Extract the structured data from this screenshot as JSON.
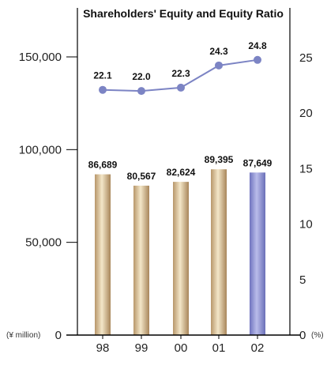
{
  "chart_data": {
    "type": "bar",
    "title": "Shareholders' Equity and Equity Ratio",
    "categories": [
      "98",
      "99",
      "00",
      "01",
      "02"
    ],
    "series": [
      {
        "type": "bar",
        "values": [
          86689,
          80567,
          82624,
          89395,
          87649
        ],
        "labels": [
          "86,689",
          "80,567",
          "82,624",
          "89,395",
          "87,649"
        ],
        "axis": "left",
        "colors": [
          "#c9b083",
          "#c9b083",
          "#c9b083",
          "#c9b083",
          "#8a8fd0"
        ]
      },
      {
        "type": "line",
        "values": [
          22.1,
          22.0,
          22.3,
          24.3,
          24.8
        ],
        "labels": [
          "22.1",
          "22.0",
          "22.3",
          "24.3",
          "24.8"
        ],
        "axis": "right",
        "color": "#7c84c4"
      }
    ],
    "left_axis": {
      "unit": "(¥ million)",
      "ylim": [
        0,
        150000
      ],
      "ticks": [
        {
          "v": 0,
          "label": "0"
        },
        {
          "v": 50000,
          "label": "50,000"
        },
        {
          "v": 100000,
          "label": "100,000"
        },
        {
          "v": 150000,
          "label": "150,000"
        }
      ]
    },
    "right_axis": {
      "unit": "(%)",
      "ylim": [
        0,
        25
      ],
      "ticks": [
        {
          "v": 0,
          "label": "0"
        },
        {
          "v": 5,
          "label": "5"
        },
        {
          "v": 10,
          "label": "10"
        },
        {
          "v": 15,
          "label": "15"
        },
        {
          "v": 20,
          "label": "20"
        },
        {
          "v": 25,
          "label": "25"
        }
      ]
    },
    "grid": false
  }
}
